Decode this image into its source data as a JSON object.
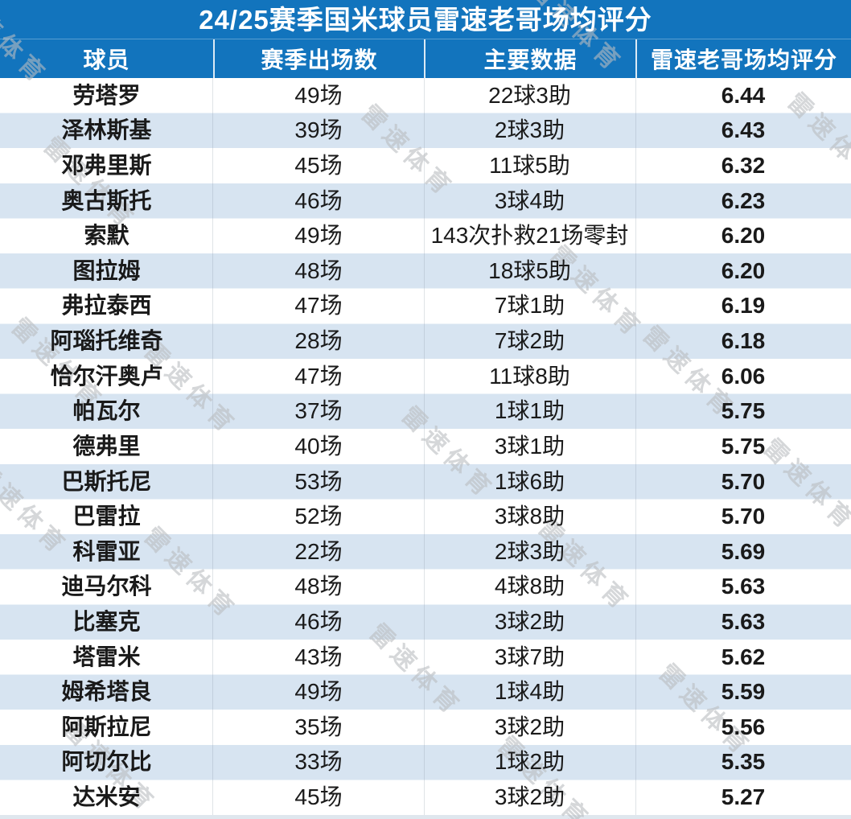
{
  "chart_data": {
    "type": "table",
    "title": "24/25赛季国米球员雷速老哥场均评分",
    "columns": [
      "球员",
      "赛季出场数",
      "主要数据",
      "雷速老哥场均评分"
    ],
    "rows": [
      {
        "player": "劳塔罗",
        "appearances": "49场",
        "key_stats": "22球3助",
        "rating": "6.44"
      },
      {
        "player": "泽林斯基",
        "appearances": "39场",
        "key_stats": "2球3助",
        "rating": "6.43"
      },
      {
        "player": "邓弗里斯",
        "appearances": "45场",
        "key_stats": "11球5助",
        "rating": "6.32"
      },
      {
        "player": "奥古斯托",
        "appearances": "46场",
        "key_stats": "3球4助",
        "rating": "6.23"
      },
      {
        "player": "索默",
        "appearances": "49场",
        "key_stats": "143次扑救21场零封",
        "rating": "6.20"
      },
      {
        "player": "图拉姆",
        "appearances": "48场",
        "key_stats": "18球5助",
        "rating": "6.20"
      },
      {
        "player": "弗拉泰西",
        "appearances": "47场",
        "key_stats": "7球1助",
        "rating": "6.19"
      },
      {
        "player": "阿瑙托维奇",
        "appearances": "28场",
        "key_stats": "7球2助",
        "rating": "6.18"
      },
      {
        "player": "恰尔汗奥卢",
        "appearances": "47场",
        "key_stats": "11球8助",
        "rating": "6.06"
      },
      {
        "player": "帕瓦尔",
        "appearances": "37场",
        "key_stats": "1球1助",
        "rating": "5.75"
      },
      {
        "player": "德弗里",
        "appearances": "40场",
        "key_stats": "3球1助",
        "rating": "5.75"
      },
      {
        "player": "巴斯托尼",
        "appearances": "53场",
        "key_stats": "1球6助",
        "rating": "5.70"
      },
      {
        "player": "巴雷拉",
        "appearances": "52场",
        "key_stats": "3球8助",
        "rating": "5.70"
      },
      {
        "player": "科雷亚",
        "appearances": "22场",
        "key_stats": "2球3助",
        "rating": "5.69"
      },
      {
        "player": "迪马尔科",
        "appearances": "48场",
        "key_stats": "4球8助",
        "rating": "5.63"
      },
      {
        "player": "比塞克",
        "appearances": "46场",
        "key_stats": "3球2助",
        "rating": "5.63"
      },
      {
        "player": "塔雷米",
        "appearances": "43场",
        "key_stats": "3球7助",
        "rating": "5.62"
      },
      {
        "player": "姆希塔良",
        "appearances": "49场",
        "key_stats": "1球4助",
        "rating": "5.59"
      },
      {
        "player": "阿斯拉尼",
        "appearances": "35场",
        "key_stats": "3球2助",
        "rating": "5.56"
      },
      {
        "player": "阿切尔比",
        "appearances": "33场",
        "key_stats": "1球2助",
        "rating": "5.35"
      },
      {
        "player": "达米安",
        "appearances": "45场",
        "key_stats": "3球2助",
        "rating": "5.27"
      }
    ]
  },
  "watermark": {
    "text": "雷速体育"
  },
  "colors": {
    "header_blue": "#1274BD",
    "stripe_blue": "#D7E4F1",
    "row_white": "#FFFFFF",
    "bottom_strip": "#DFE7EE",
    "body_text": "#1A1A1A",
    "watermark_gray": "rgba(185,188,192,0.6)"
  }
}
